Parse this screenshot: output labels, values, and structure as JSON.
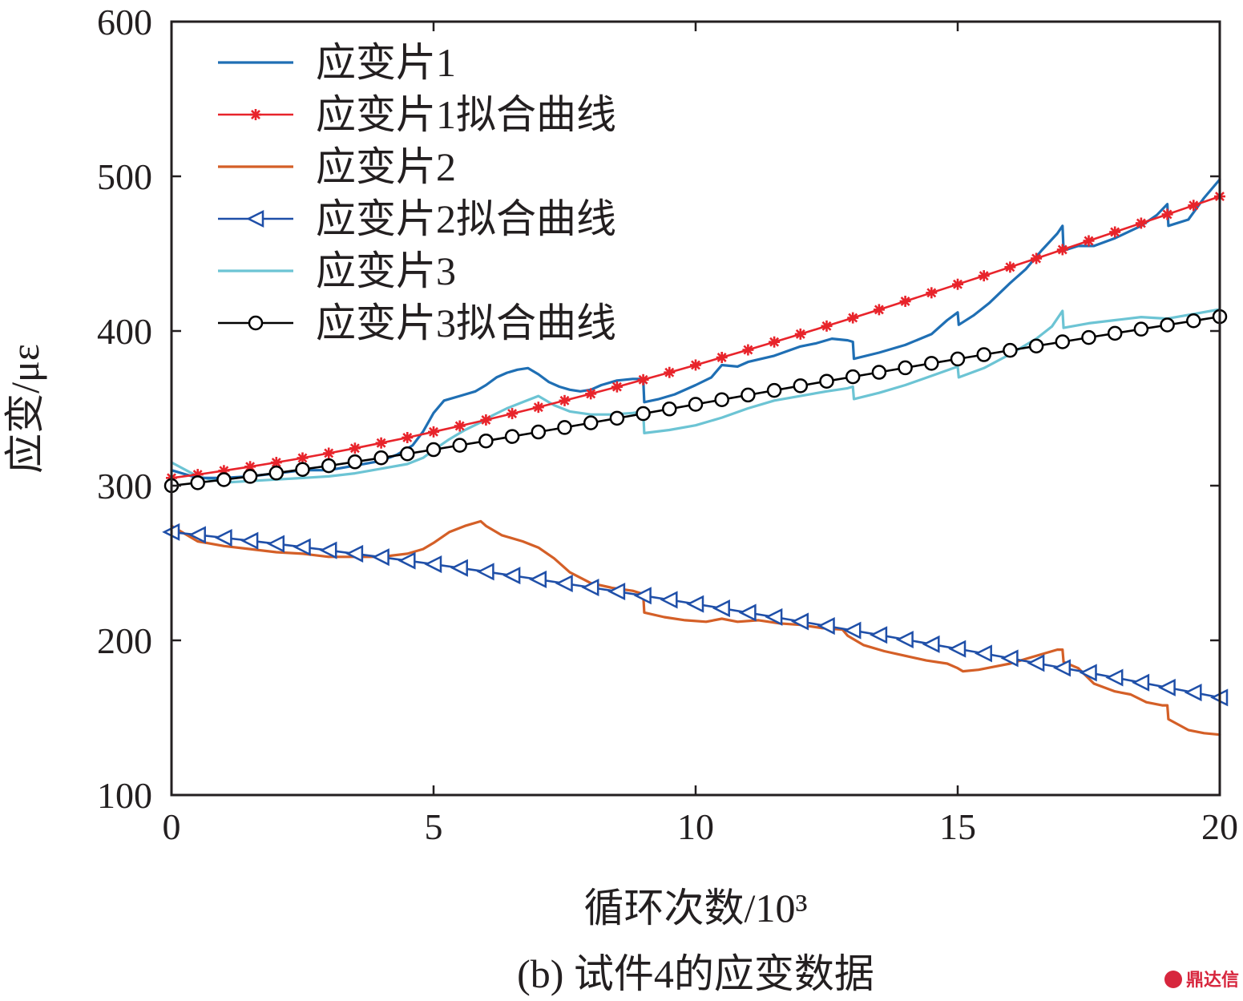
{
  "chart_data": {
    "type": "line",
    "caption": "(b) 试件4的应变数据",
    "xlabel": "循环次数/10³",
    "ylabel": "应变/με",
    "xlim": [
      0,
      20
    ],
    "ylim": [
      100,
      600
    ],
    "xticks": [
      0,
      5,
      10,
      15,
      20
    ],
    "yticks": [
      100,
      200,
      300,
      400,
      500,
      600
    ],
    "grid": false,
    "legend_position": "top-left",
    "series": [
      {
        "name": "应变片1",
        "color": "#1f6fb4",
        "marker": "none",
        "x": [
          0,
          0.5,
          1,
          1.5,
          2,
          2.5,
          3,
          3.5,
          4,
          4.3,
          4.6,
          4.8,
          5,
          5.2,
          5.5,
          5.8,
          6,
          6.2,
          6.4,
          6.6,
          6.8,
          7,
          7.2,
          7.4,
          7.6,
          7.8,
          8,
          8.2,
          8.5,
          8.8,
          9,
          9.02,
          9.3,
          9.6,
          10,
          10.3,
          10.5,
          10.8,
          11,
          11.5,
          12,
          12.3,
          12.6,
          12.9,
          13,
          13.02,
          13.5,
          14,
          14.5,
          14.8,
          15,
          15.02,
          15.3,
          15.6,
          16,
          16.3,
          16.6,
          16.9,
          17,
          17.02,
          17.3,
          17.6,
          18,
          18.5,
          18.8,
          19,
          19.02,
          19.4,
          19.7,
          20
        ],
        "y": [
          310,
          305,
          305,
          306,
          308,
          310,
          310,
          313,
          316,
          320,
          326,
          335,
          347,
          355,
          358,
          361,
          365,
          370,
          373,
          375,
          376,
          372,
          367,
          364,
          362,
          361,
          362,
          365,
          368,
          369,
          369,
          354,
          356,
          359,
          365,
          370,
          378,
          377,
          380,
          384,
          390,
          392,
          395,
          394,
          393,
          382,
          386,
          391,
          398,
          407,
          412,
          404,
          410,
          418,
          431,
          440,
          452,
          463,
          468,
          452,
          455,
          455,
          460,
          468,
          475,
          482,
          468,
          472,
          486,
          498
        ]
      },
      {
        "name": "应变片1拟合曲线",
        "color": "#e8242b",
        "marker": "asterisk",
        "x": [
          0,
          0.5,
          1,
          1.5,
          2,
          2.5,
          3,
          3.5,
          4,
          4.5,
          5,
          5.5,
          6,
          6.5,
          7,
          7.5,
          8,
          8.5,
          9,
          9.5,
          10,
          10.5,
          11,
          11.5,
          12,
          12.5,
          13,
          13.5,
          14,
          14.5,
          15,
          15.5,
          16,
          16.5,
          17,
          17.5,
          18,
          18.5,
          19,
          19.5,
          20
        ],
        "y": [
          305.0,
          307.2,
          309.7,
          312.3,
          315.0,
          317.9,
          321.0,
          324.2,
          327.6,
          331.1,
          334.8,
          338.6,
          342.5,
          346.6,
          350.7,
          355.0,
          359.4,
          363.9,
          368.5,
          373.2,
          378.0,
          382.9,
          387.8,
          392.9,
          398.0,
          403.2,
          408.5,
          413.8,
          419.2,
          424.7,
          430.2,
          435.7,
          441.3,
          446.9,
          452.6,
          458.3,
          464.0,
          469.7,
          475.4,
          481.2,
          487.0
        ]
      },
      {
        "name": "应变片2",
        "color": "#d45f27",
        "marker": "none",
        "x": [
          0,
          0.5,
          1,
          1.5,
          2,
          2.5,
          3,
          3.5,
          4,
          4.5,
          4.8,
          5,
          5.3,
          5.6,
          5.9,
          6,
          6.3,
          6.7,
          7,
          7.3,
          7.6,
          8,
          8.4,
          8.8,
          9,
          9.02,
          9.4,
          9.8,
          10.2,
          10.5,
          10.8,
          11.2,
          11.6,
          12,
          12.4,
          12.8,
          12.9,
          13.2,
          13.6,
          14,
          14.4,
          14.8,
          15,
          15.1,
          15.4,
          15.7,
          16,
          16.3,
          16.6,
          16.9,
          17,
          17.02,
          17.3,
          17.6,
          18,
          18.3,
          18.6,
          18.9,
          19,
          19.02,
          19.4,
          19.7,
          20
        ],
        "y": [
          274,
          264,
          261,
          259,
          257,
          256,
          254,
          254,
          254,
          256,
          259,
          263,
          270,
          274,
          277,
          274,
          268,
          264,
          260,
          253,
          244,
          237,
          234,
          232,
          230,
          218,
          215,
          213,
          212,
          214,
          212,
          213,
          211,
          210,
          208,
          207,
          203,
          197,
          193,
          190,
          187,
          185,
          182,
          180,
          181,
          183,
          185,
          188,
          191,
          194,
          194,
          186,
          182,
          172,
          167,
          165,
          160,
          158,
          158,
          149,
          142,
          140,
          139
        ]
      },
      {
        "name": "应变片2拟合曲线",
        "color": "#1f4fa8",
        "marker": "triangle-left",
        "x": [
          0,
          0.5,
          1,
          1.5,
          2,
          2.5,
          3,
          3.5,
          4,
          4.5,
          5,
          5.5,
          6,
          6.5,
          7,
          7.5,
          8,
          8.5,
          9,
          9.5,
          10,
          10.5,
          11,
          11.5,
          12,
          12.5,
          13,
          13.5,
          14,
          14.5,
          15,
          15.5,
          16,
          16.5,
          17,
          17.5,
          18,
          18.5,
          19,
          19.5,
          20
        ],
        "y": [
          270.0,
          268.2,
          266.3,
          264.4,
          262.4,
          260.3,
          258.2,
          256.0,
          253.8,
          251.5,
          249.2,
          246.8,
          244.4,
          241.9,
          239.4,
          236.8,
          234.2,
          231.6,
          228.9,
          226.2,
          223.5,
          220.7,
          217.9,
          215.1,
          212.2,
          209.3,
          206.4,
          203.5,
          200.5,
          197.5,
          194.5,
          191.5,
          188.4,
          185.3,
          182.2,
          179.1,
          175.9,
          172.7,
          169.5,
          166.3,
          163.0
        ]
      },
      {
        "name": "应变片3",
        "color": "#6cc4d4",
        "marker": "none",
        "x": [
          0,
          0.5,
          1,
          1.5,
          2,
          2.5,
          3,
          3.5,
          4,
          4.5,
          4.8,
          5,
          5.3,
          5.6,
          5.9,
          6.1,
          6.4,
          6.7,
          7,
          7.3,
          7.6,
          8,
          8.4,
          8.8,
          9,
          9.02,
          9.5,
          10,
          10.5,
          11,
          11.5,
          12,
          12.5,
          12.9,
          13,
          13.02,
          13.5,
          14,
          14.5,
          15,
          15.02,
          15.5,
          16,
          16.5,
          16.8,
          17,
          17.02,
          17.5,
          18,
          18.5,
          19,
          19.5,
          20
        ],
        "y": [
          315,
          306,
          302,
          303,
          304,
          305,
          306,
          308,
          311,
          314,
          318,
          323,
          330,
          336,
          341,
          345,
          350,
          354,
          358,
          352,
          348,
          346,
          346,
          347,
          348,
          334,
          336,
          339,
          344,
          350,
          355,
          358,
          361,
          363,
          364,
          356,
          360,
          365,
          371,
          377,
          370,
          376,
          385,
          395,
          403,
          413,
          402,
          405,
          407,
          409,
          408,
          411,
          414
        ]
      },
      {
        "name": "应变片3拟合曲线",
        "color": "#000000",
        "marker": "circle",
        "x": [
          0,
          0.5,
          1,
          1.5,
          2,
          2.5,
          3,
          3.5,
          4,
          4.5,
          5,
          5.5,
          6,
          6.5,
          7,
          7.5,
          8,
          8.5,
          9,
          9.5,
          10,
          10.5,
          11,
          11.5,
          12,
          12.5,
          13,
          13.5,
          14,
          14.5,
          15,
          15.5,
          16,
          16.5,
          17,
          17.5,
          18,
          18.5,
          19,
          19.5,
          20
        ],
        "y": [
          300.0,
          301.9,
          303.9,
          306.0,
          308.2,
          310.5,
          312.9,
          315.4,
          318.0,
          320.6,
          323.3,
          326.1,
          328.9,
          331.8,
          334.7,
          337.6,
          340.6,
          343.6,
          346.6,
          349.6,
          352.6,
          355.6,
          358.6,
          361.6,
          364.6,
          367.5,
          370.4,
          373.3,
          376.2,
          379.1,
          381.9,
          384.7,
          387.5,
          390.3,
          393.0,
          395.8,
          398.5,
          401.2,
          403.9,
          406.6,
          409.3
        ]
      }
    ]
  },
  "watermark": {
    "text": "鼎达信"
  }
}
